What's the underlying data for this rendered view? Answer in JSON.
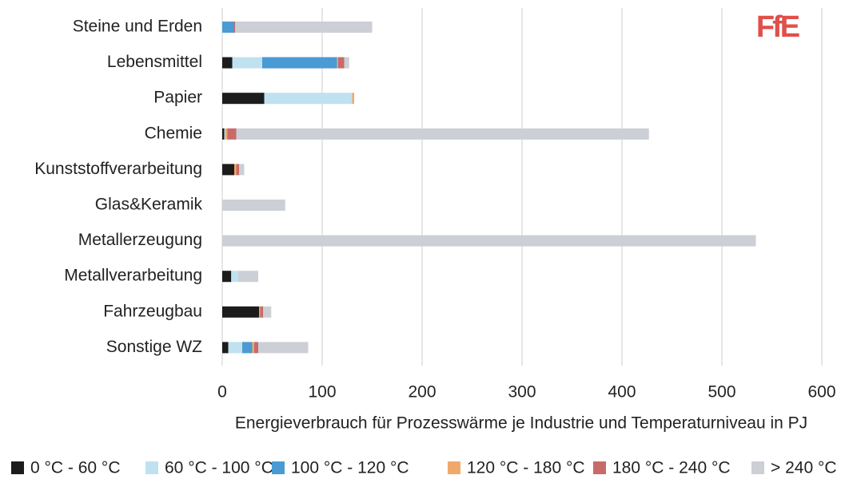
{
  "chart_data": {
    "type": "stacked_bar_horizontal",
    "logo": "FfE",
    "categories": [
      "Steine und Erden",
      "Lebensmittel",
      "Papier",
      "Chemie",
      "Kunststoffverarbeitung",
      "Glas&Keramik",
      "Metallerzeugung",
      "Metallverarbeitung",
      "Fahrzeugbau",
      "Sonstige WZ"
    ],
    "series": [
      {
        "name": "0 °C - 60 °C",
        "color": "#1c1c1c",
        "values": [
          0,
          10,
          42,
          2,
          12,
          0,
          0,
          9,
          37,
          6
        ]
      },
      {
        "name": "60 °C - 100 °C",
        "color": "#c0e1f0",
        "values": [
          0,
          30,
          88,
          1,
          0,
          0,
          0,
          7,
          0,
          14
        ]
      },
      {
        "name": "100 °C - 120 °C",
        "color": "#4a9ad4",
        "values": [
          12,
          75,
          0,
          0,
          0,
          0,
          0,
          0,
          0,
          10
        ]
      },
      {
        "name": "120 °C - 180 °C",
        "color": "#f0a96a",
        "values": [
          0,
          1,
          2,
          2,
          2,
          0,
          0,
          0,
          1,
          2
        ]
      },
      {
        "name": "180 °C - 240 °C",
        "color": "#c96a6a",
        "values": [
          1,
          6,
          0,
          9,
          3,
          0,
          0,
          0,
          3,
          4
        ]
      },
      {
        "name": "> 240 °C",
        "color": "#cccfd6",
        "values": [
          137,
          5,
          0,
          413,
          5,
          63,
          534,
          20,
          8,
          50
        ]
      }
    ],
    "xlim": [
      0,
      600
    ],
    "xticks": [
      0,
      100,
      200,
      300,
      400,
      500,
      600
    ],
    "xlabel": "Energieverbrauch für Prozesswärme je Industrie und Temperaturniveau in PJ",
    "grid": true
  }
}
